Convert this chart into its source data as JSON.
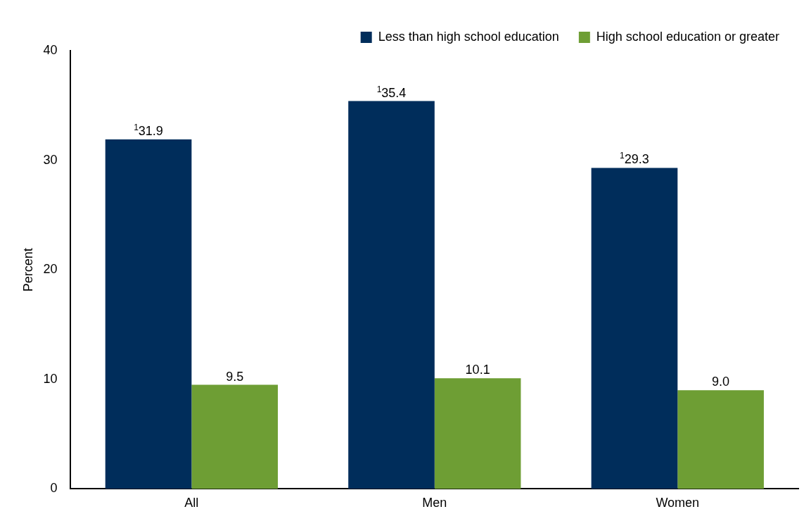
{
  "chart_data": {
    "type": "bar",
    "ylabel": "Percent",
    "categories": [
      "All",
      "Men",
      "Women"
    ],
    "series": [
      {
        "name": "Less than high school education",
        "color": "#002d5b",
        "values": [
          31.9,
          35.4,
          29.3
        ],
        "value_labels": [
          "$^{1}$31.9",
          "$^{1}$35.4",
          "$^{1}$29.3"
        ]
      },
      {
        "name": "High school education or greater",
        "color": "#6e9e34",
        "values": [
          9.5,
          10.1,
          9.0
        ],
        "value_labels": [
          "9.5",
          "10.1",
          "9.0"
        ]
      }
    ],
    "ylim": [
      0,
      40
    ],
    "yticks": [
      0,
      10,
      20,
      30,
      40
    ],
    "grid": false,
    "legend": "top right"
  }
}
